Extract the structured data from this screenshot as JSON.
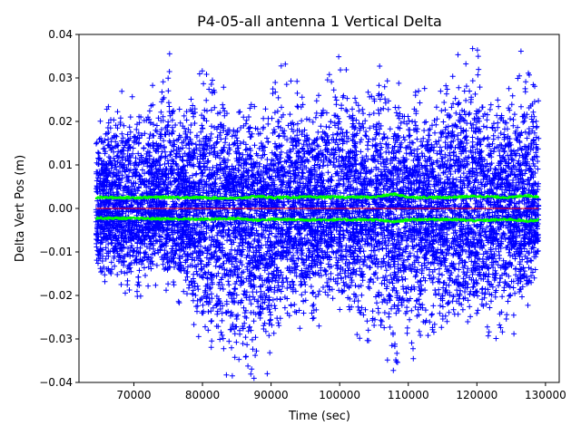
{
  "chart_data": {
    "type": "scatter",
    "title": "P4-05-all antenna 1 Vertical Delta",
    "xlabel": "Time (sec)",
    "ylabel": "Delta Vert Pos (m)",
    "xlim": [
      62000,
      132000
    ],
    "ylim": [
      -0.04,
      0.04
    ],
    "x_ticks": [
      70000,
      80000,
      90000,
      100000,
      110000,
      120000,
      130000
    ],
    "x_tick_labels": [
      "70000",
      "80000",
      "90000",
      "100000",
      "110000",
      "120000",
      "130000"
    ],
    "y_ticks": [
      -0.04,
      -0.03,
      -0.02,
      -0.01,
      0.0,
      0.01,
      0.02,
      0.03,
      0.04
    ],
    "y_tick_labels": [
      "−0.04",
      "−0.03",
      "−0.02",
      "−0.01",
      "0.00",
      "0.01",
      "0.02",
      "0.03",
      "0.04"
    ],
    "grid": false,
    "legend": "none",
    "series": [
      {
        "marker": "plus",
        "color": "#0000ff",
        "x_range": [
          64500,
          129000
        ],
        "envelope_x": [
          64500,
          68000,
          71000,
          74000,
          75000,
          76000,
          80000,
          84000,
          87000,
          89000,
          92000,
          96000,
          100000,
          103000,
          106000,
          108000,
          110000,
          113000,
          116000,
          119000,
          122000,
          125000,
          127000,
          129000
        ],
        "envelope_upper": [
          0.022,
          0.027,
          0.026,
          0.03,
          0.04,
          0.022,
          0.034,
          0.026,
          0.024,
          0.022,
          0.035,
          0.022,
          0.039,
          0.028,
          0.033,
          0.03,
          0.026,
          0.028,
          0.032,
          0.04,
          0.03,
          0.034,
          0.037,
          0.03
        ],
        "envelope_lower": [
          -0.015,
          -0.02,
          -0.022,
          -0.016,
          -0.02,
          -0.02,
          -0.031,
          -0.041,
          -0.038,
          -0.042,
          -0.027,
          -0.028,
          -0.024,
          -0.03,
          -0.031,
          -0.039,
          -0.036,
          -0.03,
          -0.034,
          -0.03,
          -0.032,
          -0.03,
          -0.027,
          -0.018
        ]
      },
      {
        "marker": "dot",
        "color": "#00ff00",
        "x": [
          64500,
          70000,
          75000,
          80000,
          85000,
          88000,
          90000,
          95000,
          100000,
          105000,
          108000,
          110000,
          115000,
          120000,
          125000,
          127000,
          129000
        ],
        "y": [
          0.0025,
          0.0025,
          0.0026,
          0.0025,
          0.0023,
          0.0028,
          0.0025,
          0.0026,
          0.0026,
          0.0026,
          0.0033,
          0.0026,
          0.0025,
          0.0028,
          0.0025,
          0.003,
          0.0027
        ]
      },
      {
        "marker": "dot",
        "color": "#00ff00",
        "x": [
          64500,
          70000,
          75000,
          80000,
          85000,
          88000,
          90000,
          95000,
          100000,
          105000,
          108000,
          110000,
          115000,
          120000,
          125000,
          127000,
          129000
        ],
        "y": [
          -0.0022,
          -0.0023,
          -0.0024,
          -0.0025,
          -0.0023,
          -0.0027,
          -0.0025,
          -0.0026,
          -0.0026,
          -0.0026,
          -0.0031,
          -0.0026,
          -0.0025,
          -0.0028,
          -0.0025,
          -0.0029,
          -0.0027
        ]
      },
      {
        "marker": "line",
        "color": "#ff0000",
        "x": [
          64500,
          129000
        ],
        "y": [
          0,
          0
        ]
      }
    ]
  }
}
